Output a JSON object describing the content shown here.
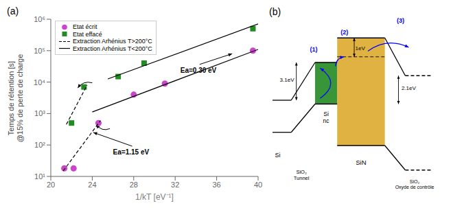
{
  "chart_data": [
    {
      "type": "scatter",
      "title": "(a)",
      "x_label": "1/kT [eV⁻¹]",
      "y_label": "Temps de rétention [s]\n@15% de perte de charge",
      "log": "y",
      "grid": false,
      "legend": "upper left",
      "xlim": [
        20,
        40
      ],
      "xticks": [
        20,
        24,
        28,
        32,
        36,
        40
      ],
      "ylim": [
        10,
        1000000
      ],
      "yticks": [
        {
          "value": 10,
          "label": "10¹"
        },
        {
          "value": 100,
          "label": "10²"
        },
        {
          "value": 1000,
          "label": "10³"
        },
        {
          "value": 10000,
          "label": "10⁴"
        },
        {
          "value": 100000,
          "label": "10⁵"
        },
        {
          "value": 1000000,
          "label": "10⁶"
        }
      ],
      "series": [
        {
          "name": "Etat écrit",
          "type": "scatter",
          "color": "#cc44cc",
          "marker": "circle",
          "x": [
            21.3,
            22.2,
            24.6,
            28.0,
            31.0,
            39.5
          ],
          "values": [
            18,
            18,
            500,
            4000,
            9000,
            100000
          ]
        },
        {
          "name": "Etat effacé",
          "type": "scatter",
          "color": "#228b22",
          "marker": "square",
          "x": [
            22.0,
            23.2,
            26.5,
            29.0,
            39.5
          ],
          "values": [
            500,
            7000,
            15000,
            40000,
            500000
          ]
        },
        {
          "name": "Extraction Arhénius T>200°C",
          "type": "line",
          "color": "#000000",
          "line_style": "dashed",
          "x": [
            21.2,
            24.8
          ],
          "values": [
            15,
            600
          ]
        },
        {
          "name": "Extraction Arhénius T>200°C",
          "type": "line",
          "color": "#000000",
          "line_style": "dashed",
          "x": [
            21.5,
            23.5
          ],
          "values": [
            450,
            8000
          ]
        },
        {
          "name": "Extraction Arhénius T<200°C",
          "type": "line",
          "color": "#000000",
          "line_style": "solid",
          "x": [
            24.0,
            40.0
          ],
          "values": [
            1122.0184543019636,
            109647.8196143185
          ]
        },
        {
          "name": "Extraction Arhénius T<200°C",
          "type": "line",
          "color": "#000000",
          "line_style": "solid",
          "x": [
            25.5,
            40.0
          ],
          "values": [
            12589.254117941673,
            707945.7843841374
          ]
        }
      ],
      "annotations": [
        {
          "text": "Ea=0.30 eV",
          "xy": [
            37.5,
            80000
          ],
          "xytext": [
            32.5,
            20000
          ]
        },
        {
          "text": "Ea=1.15 eV",
          "xy": [
            24.1,
            250
          ],
          "xytext": [
            26.0,
            50
          ]
        }
      ],
      "arrows": [
        {
          "xy": [
            22.6,
            6500
          ],
          "xytext": [
            24.0,
            9500
          ]
        },
        {
          "xy": [
            24.4,
            450
          ],
          "xytext": [
            25.7,
            330
          ]
        }
      ]
    },
    {
      "type": "diagram",
      "title": "(b)",
      "annotations": [
        "Si",
        "SiO₂\nTunnel",
        "Si\nnc",
        "SiN",
        "SiO₂\nOxyde de contrôle",
        "3.1eV",
        "2.1eV",
        "1eV",
        "(1)",
        "(2)",
        "(3)"
      ],
      "colors": [
        "#228b22",
        "#DAA520",
        "#0000ff"
      ]
    }
  ]
}
